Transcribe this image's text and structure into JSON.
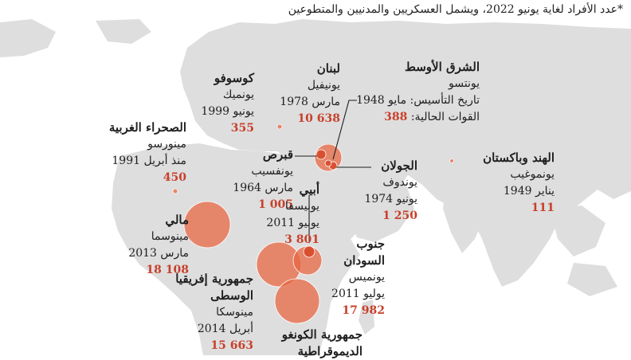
{
  "footnote": "*عدد الأفراد لغاية يونيو 2022، ويشمل العسكريين والمدنيين والمتطوعين",
  "map": {
    "land_color": "#dedede",
    "bubble_color": "#e8643f",
    "value_color": "#c8402b"
  },
  "missions": {
    "middle_east": {
      "title": "الشرق الأوسط",
      "mission": "يونتسو",
      "founded": "تاريخ التأسيس: مايو 1948",
      "forces_label": "القوات الحالية:",
      "value": "388"
    },
    "lebanon": {
      "title": "لبنان",
      "mission": "يونيفيل",
      "date": "مارس 1978",
      "value": "10 638"
    },
    "kosovo": {
      "title": "كوسوفو",
      "mission": "يونميك",
      "date": "يونيو 1999",
      "value": "355"
    },
    "western_sahara": {
      "title": "الصحراء الغربية",
      "mission": "مينورسو",
      "date": "منذ أبريل 1991",
      "value": "450"
    },
    "cyprus": {
      "title": "قبرص",
      "mission": "يونفسيب",
      "date": "مارس 1964",
      "value": "1 005"
    },
    "golan": {
      "title": "الجولان",
      "mission": "يوندوف",
      "date": "يونيو 1974",
      "value": "1 250"
    },
    "india_pakistan": {
      "title": "الهند وباكستان",
      "mission": "يونموغيب",
      "date": "يناير 1949",
      "value": "111"
    },
    "abyei": {
      "title": "أبيي",
      "mission": "يونيسفا",
      "date": "يونيو 2011",
      "value": "3 801"
    },
    "mali": {
      "title": "مالي",
      "mission": "مينوسما",
      "date": "مارس 2013",
      "value": "18 108"
    },
    "south_sudan": {
      "title": "جنوب السودان",
      "mission": "يونميس",
      "date": "يوليو 2011",
      "value": "17 982"
    },
    "car": {
      "title": "جمهورية إفريقيا الوسطى",
      "mission": "مينوسكا",
      "date": "أبريل 2014",
      "value": "15 663"
    },
    "drc": {
      "title": "جمهورية الكونغو الديموقراطية"
    }
  }
}
